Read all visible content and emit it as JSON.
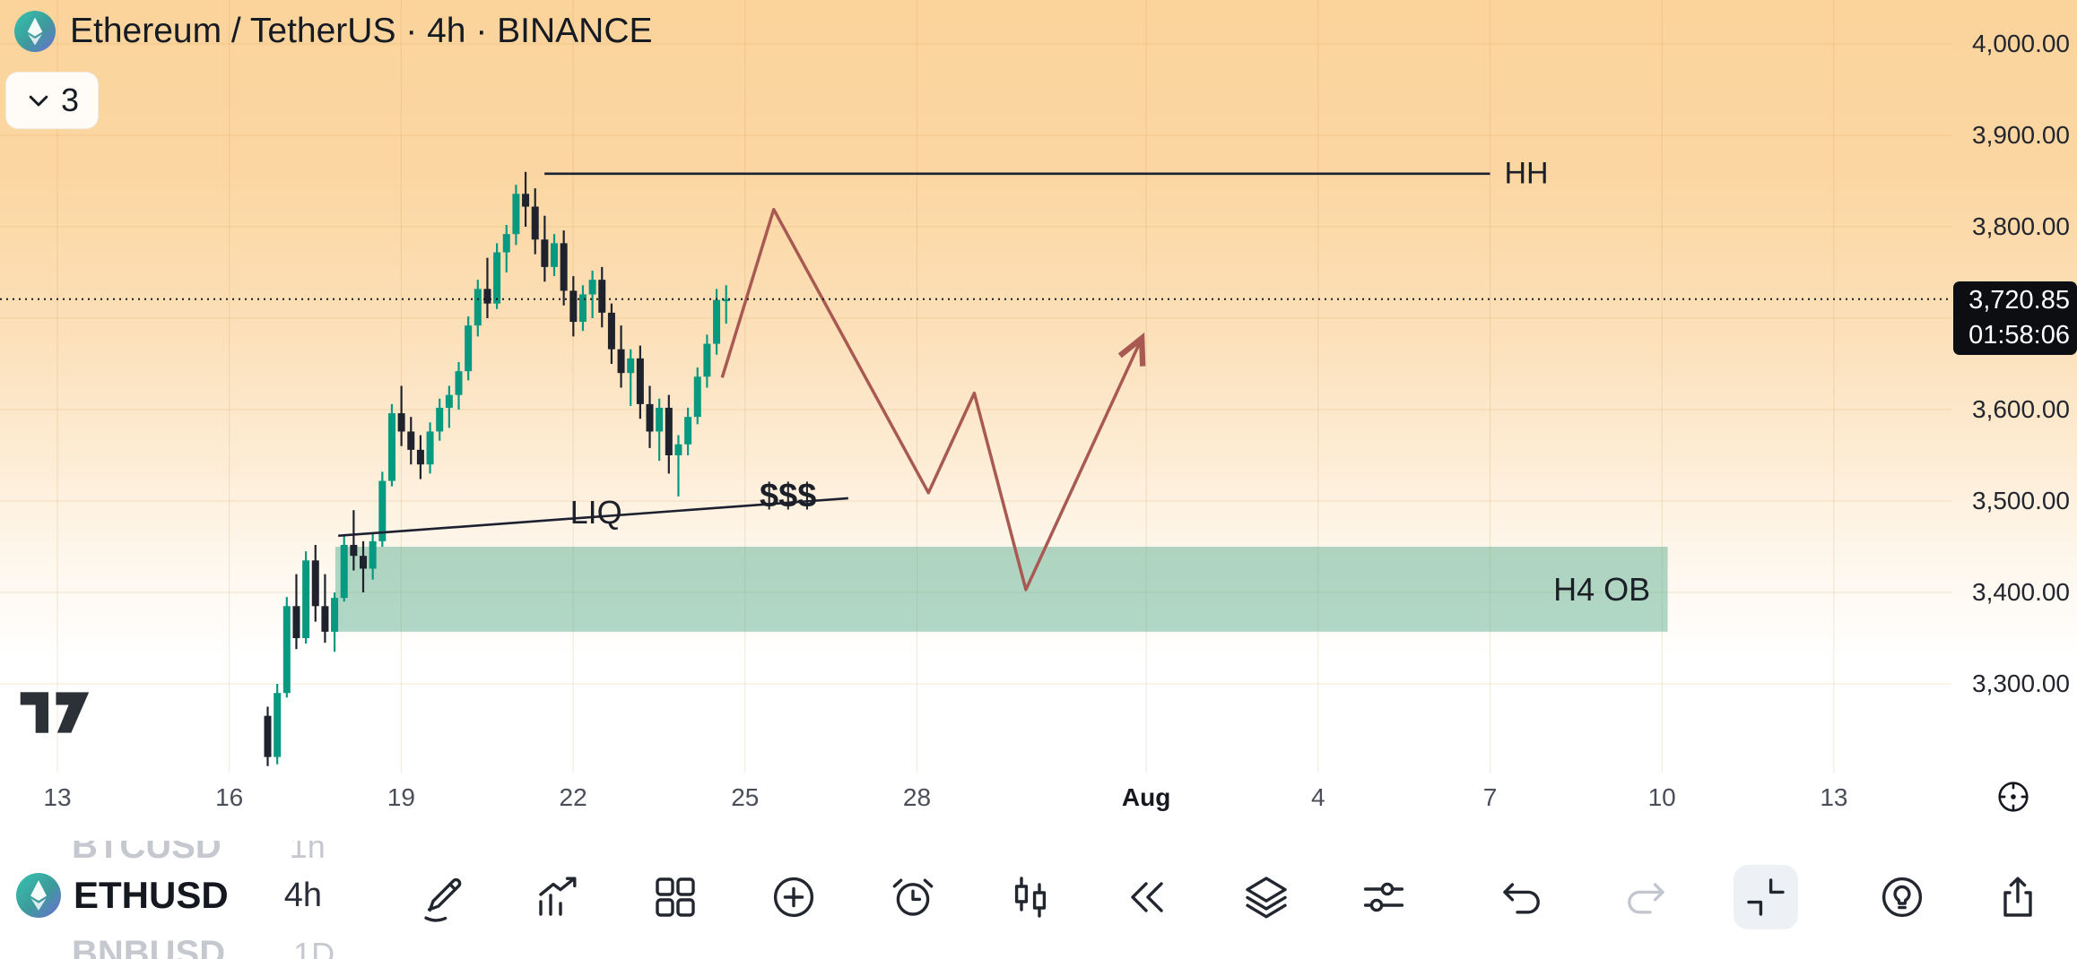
{
  "colors": {
    "candle_up": "#089981",
    "candle_down": "#1e222d",
    "projection": "#a85a52",
    "ob_zone": "rgba(79,169,138,0.45)",
    "badge_bg": "#0d0e12",
    "badge_text": "#ffffff",
    "line_dark": "#1c2030"
  },
  "header": {
    "symbol_logo": "ethereum-icon",
    "title": "Ethereum / TetherUS · 4h · BINANCE",
    "objects_button_icon": "chevron-down-icon",
    "objects_count": "3"
  },
  "price_axis": {
    "grid_prices": [
      4000,
      3900,
      3800,
      3700,
      3600,
      3500,
      3400,
      3300
    ],
    "ticks": [
      {
        "label": "4,000.00",
        "price": 4000
      },
      {
        "label": "3,900.00",
        "price": 3900
      },
      {
        "label": "3,800.00",
        "price": 3800
      },
      {
        "label": "3,600.00",
        "price": 3600
      },
      {
        "label": "3,500.00",
        "price": 3500
      },
      {
        "label": "3,400.00",
        "price": 3400
      },
      {
        "label": "3,300.00",
        "price": 3300
      }
    ],
    "current": {
      "price": 3720.85,
      "price_label": "3,720.85",
      "countdown": "01:58:06"
    }
  },
  "time_axis": {
    "realtime_button_icon": "target-icon",
    "ticks": [
      {
        "label": "13",
        "day": 13
      },
      {
        "label": "16",
        "day": 16
      },
      {
        "label": "19",
        "day": 19
      },
      {
        "label": "22",
        "day": 22
      },
      {
        "label": "25",
        "day": 25
      },
      {
        "label": "28",
        "day": 28
      },
      {
        "label": "Aug",
        "day": 32,
        "emphasis": true
      },
      {
        "label": "4",
        "day": 35
      },
      {
        "label": "7",
        "day": 38
      },
      {
        "label": "10",
        "day": 41
      },
      {
        "label": "13",
        "day": 44
      }
    ]
  },
  "chart_data": {
    "type": "candlestick",
    "title": "Ethereum / TetherUS · 4h · BINANCE",
    "symbol": "ETHUSD",
    "exchange": "BINANCE",
    "interval": "4h",
    "ylim": [
      3190,
      4010
    ],
    "x_range": "Jul 13 - Aug 13",
    "start_day": 16.67,
    "candles_per_day": 6,
    "candles_format": [
      "open",
      "high",
      "low",
      "close"
    ],
    "candles": [
      [
        3265,
        3275,
        3210,
        3220
      ],
      [
        3220,
        3300,
        3212,
        3290
      ],
      [
        3290,
        3395,
        3285,
        3385
      ],
      [
        3385,
        3420,
        3338,
        3350
      ],
      [
        3350,
        3445,
        3344,
        3435
      ],
      [
        3435,
        3452,
        3368,
        3385
      ],
      [
        3385,
        3420,
        3345,
        3357
      ],
      [
        3357,
        3400,
        3335,
        3394
      ],
      [
        3394,
        3462,
        3390,
        3452
      ],
      [
        3452,
        3490,
        3424,
        3440
      ],
      [
        3440,
        3456,
        3400,
        3426
      ],
      [
        3426,
        3466,
        3414,
        3456
      ],
      [
        3456,
        3532,
        3450,
        3522
      ],
      [
        3522,
        3606,
        3516,
        3596
      ],
      [
        3596,
        3626,
        3560,
        3576
      ],
      [
        3576,
        3592,
        3540,
        3556
      ],
      [
        3556,
        3572,
        3524,
        3540
      ],
      [
        3540,
        3586,
        3530,
        3576
      ],
      [
        3576,
        3612,
        3566,
        3602
      ],
      [
        3602,
        3626,
        3580,
        3616
      ],
      [
        3616,
        3652,
        3600,
        3642
      ],
      [
        3642,
        3702,
        3632,
        3692
      ],
      [
        3692,
        3742,
        3680,
        3732
      ],
      [
        3732,
        3766,
        3700,
        3716
      ],
      [
        3716,
        3782,
        3710,
        3772
      ],
      [
        3772,
        3802,
        3750,
        3792
      ],
      [
        3792,
        3846,
        3780,
        3836
      ],
      [
        3836,
        3860,
        3800,
        3822
      ],
      [
        3822,
        3842,
        3770,
        3786
      ],
      [
        3786,
        3812,
        3740,
        3756
      ],
      [
        3756,
        3792,
        3746,
        3782
      ],
      [
        3782,
        3796,
        3714,
        3730
      ],
      [
        3730,
        3746,
        3680,
        3696
      ],
      [
        3696,
        3736,
        3686,
        3726
      ],
      [
        3726,
        3752,
        3700,
        3742
      ],
      [
        3742,
        3756,
        3690,
        3706
      ],
      [
        3706,
        3716,
        3650,
        3666
      ],
      [
        3666,
        3692,
        3624,
        3640
      ],
      [
        3640,
        3666,
        3604,
        3656
      ],
      [
        3656,
        3670,
        3590,
        3606
      ],
      [
        3606,
        3626,
        3558,
        3576
      ],
      [
        3576,
        3612,
        3544,
        3602
      ],
      [
        3602,
        3616,
        3530,
        3550
      ],
      [
        3550,
        3572,
        3505,
        3562
      ],
      [
        3562,
        3602,
        3550,
        3592
      ],
      [
        3592,
        3646,
        3584,
        3636
      ],
      [
        3636,
        3682,
        3624,
        3672
      ],
      [
        3672,
        3732,
        3660,
        3720
      ],
      [
        3720,
        3736,
        3694,
        3721
      ]
    ]
  },
  "drawings": {
    "hh_line": {
      "label": "HH",
      "price": 3858,
      "from_day": 21.5,
      "to_day": 38.0
    },
    "liq_line": {
      "label": "LIQ",
      "money_label": "$$$",
      "from_day": 17.9,
      "from_price": 3462,
      "to_day": 26.8,
      "to_price": 3503,
      "label_day": 22.4,
      "label_price": 3487,
      "money_day": 25.75,
      "money_price": 3505
    },
    "ob_zone": {
      "label": "H4 OB",
      "from_day": 17.85,
      "to_day": 41.1,
      "price_top": 3450,
      "price_bottom": 3357,
      "label_day": 39.95,
      "label_price": 3403
    },
    "projection": {
      "points": [
        [
          24.6,
          3635
        ],
        [
          25.5,
          3819
        ],
        [
          28.2,
          3509
        ],
        [
          29.0,
          3618
        ],
        [
          29.9,
          3403
        ],
        [
          31.9,
          3675
        ]
      ]
    }
  },
  "watermark": {
    "icon": "tradingview-logo"
  },
  "footer": {
    "prev_symbol": {
      "symbol": "BTCUSD",
      "interval": "1h"
    },
    "current_symbol": {
      "symbol": "ETHUSD",
      "interval": "4h",
      "logo": "ethereum-icon"
    },
    "next_symbol": {
      "symbol": "BNBUSD",
      "interval": "1D"
    },
    "buttons": [
      {
        "name": "draw"
      },
      {
        "name": "indicators"
      },
      {
        "name": "templates"
      },
      {
        "name": "add"
      },
      {
        "name": "alert"
      },
      {
        "name": "chart-type"
      },
      {
        "name": "replay"
      },
      {
        "name": "objects"
      },
      {
        "name": "settings"
      },
      {
        "name": "undo"
      },
      {
        "name": "redo",
        "disabled": true
      },
      {
        "name": "collapse",
        "active": true
      },
      {
        "name": "ideas"
      },
      {
        "name": "share"
      }
    ]
  }
}
